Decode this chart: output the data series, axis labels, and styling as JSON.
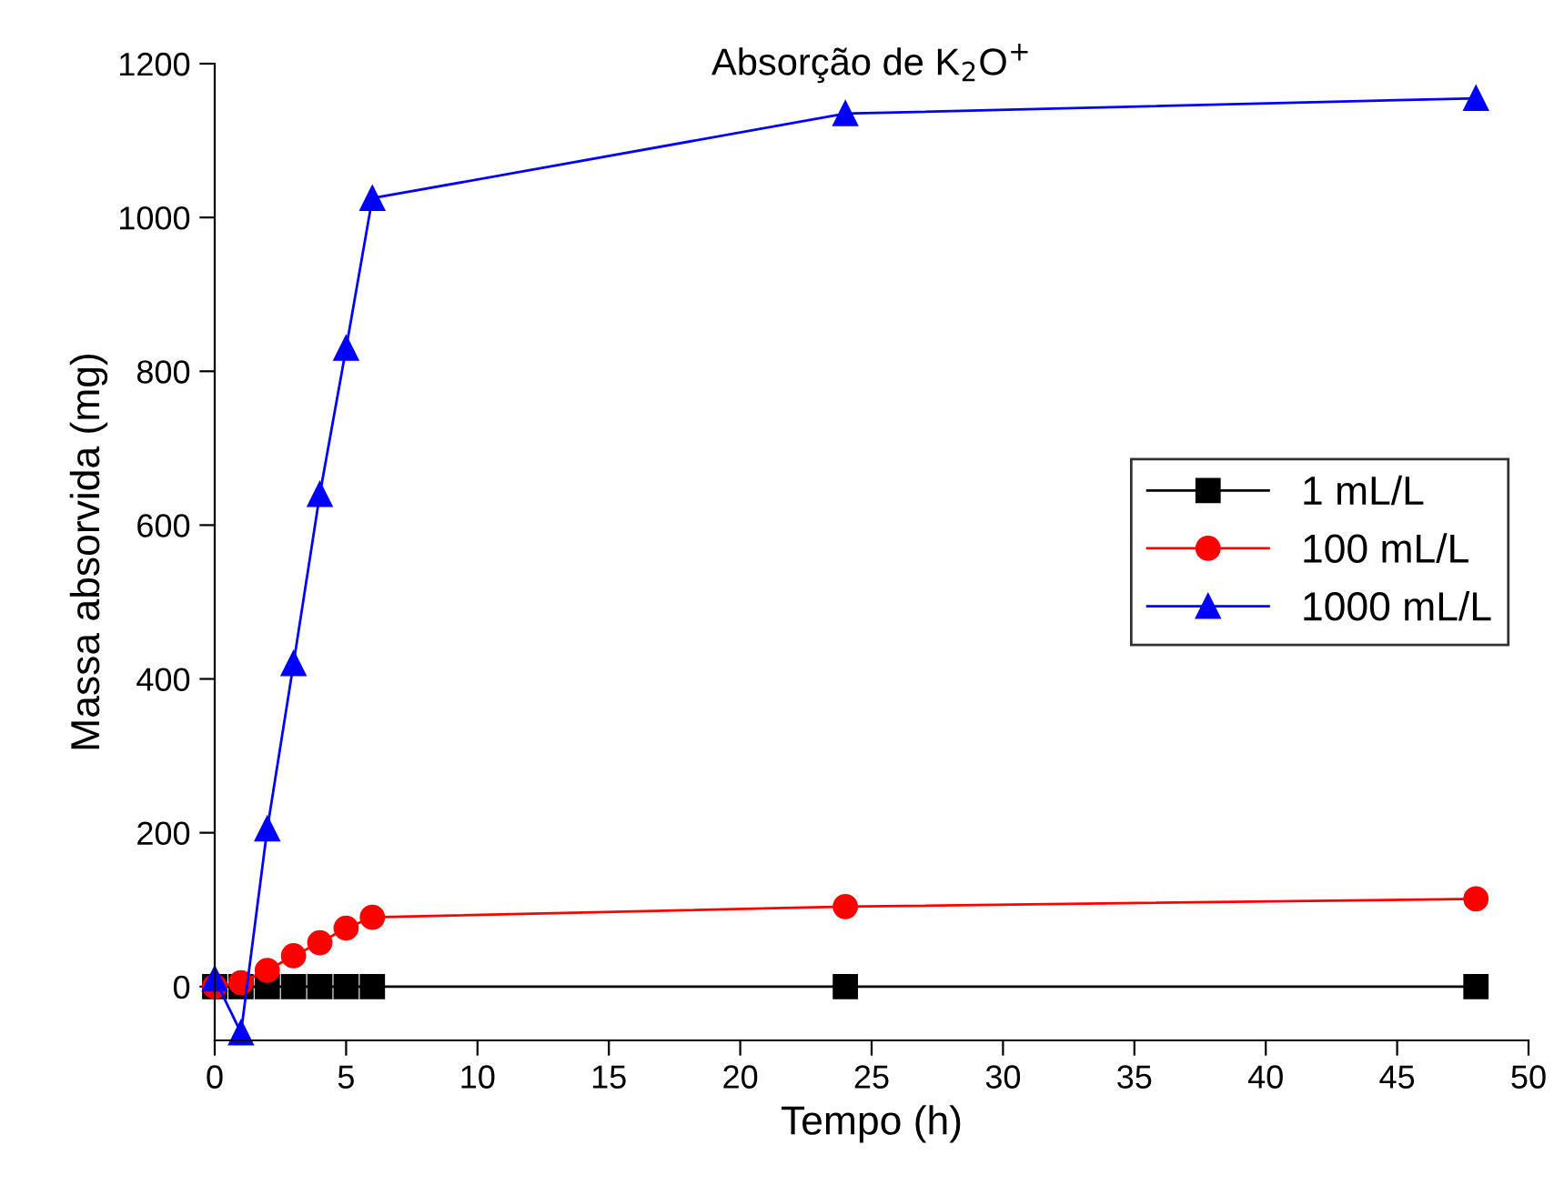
{
  "chart_data": {
    "type": "line",
    "title": "Absorção de K$_{2}$O$^{+}$",
    "xlabel": "Tempo (h)",
    "ylabel": "Massa absorvida (mg)",
    "x": [
      0,
      1,
      2,
      3,
      4,
      5,
      6,
      24,
      48
    ],
    "series": [
      {
        "name": "1 mL/L",
        "color": "#000000",
        "marker": "square",
        "values": [
          0,
          0,
          0,
          0,
          0,
          0,
          0,
          0,
          0
        ]
      },
      {
        "name": "100 mL/L",
        "color": "#ff0000",
        "marker": "circle",
        "values": [
          0,
          5,
          21,
          40,
          57,
          76,
          90,
          104,
          114
        ]
      },
      {
        "name": "1000 mL/L",
        "color": "#0000ff",
        "marker": "triangle",
        "values": [
          10,
          -60,
          205,
          420,
          640,
          830,
          1025,
          1135,
          1155
        ]
      }
    ],
    "xlim": [
      0,
      50
    ],
    "xticks": [
      0,
      5,
      10,
      15,
      20,
      25,
      30,
      35,
      40,
      45,
      50
    ],
    "ylim": [
      -70,
      1200
    ],
    "yticks": [
      0,
      200,
      400,
      600,
      800,
      1000,
      1200
    ],
    "grid": false,
    "legend": "right",
    "line_style": "solid"
  }
}
